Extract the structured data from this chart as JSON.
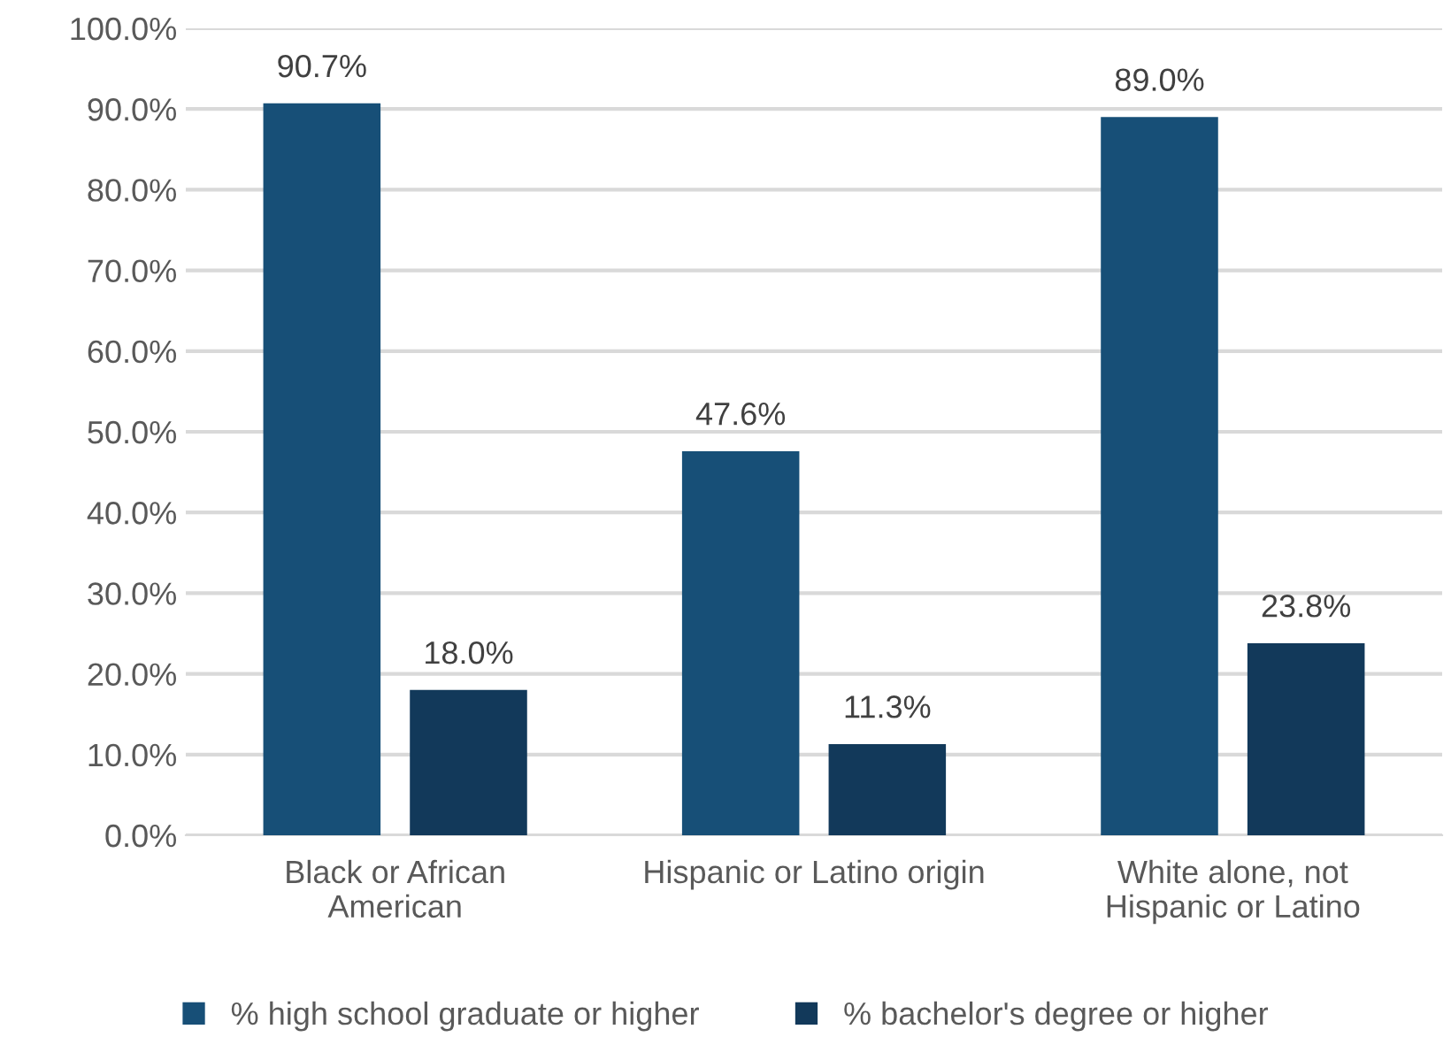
{
  "chart_data": {
    "type": "bar",
    "categories": [
      "Black or African\nAmerican",
      "Hispanic or Latino origin",
      "White alone, not\nHispanic or Latino"
    ],
    "series": [
      {
        "name": "% high school graduate or higher",
        "color": "#174f77",
        "values": [
          90.7,
          47.6,
          89.0
        ],
        "value_labels": [
          "90.7%",
          "47.6%",
          "89.0%"
        ]
      },
      {
        "name": "% bachelor's degree or higher",
        "color": "#12395a",
        "values": [
          18.0,
          11.3,
          23.8
        ],
        "value_labels": [
          "18.0%",
          "11.3%",
          "23.8%"
        ]
      }
    ],
    "ylim": [
      0,
      100
    ],
    "yticks": [
      {
        "value": 0,
        "label": "0.0%"
      },
      {
        "value": 10,
        "label": "10.0%"
      },
      {
        "value": 20,
        "label": "20.0%"
      },
      {
        "value": 30,
        "label": "30.0%"
      },
      {
        "value": 40,
        "label": "40.0%"
      },
      {
        "value": 50,
        "label": "50.0%"
      },
      {
        "value": 60,
        "label": "60.0%"
      },
      {
        "value": 70,
        "label": "70.0%"
      },
      {
        "value": 80,
        "label": "80.0%"
      },
      {
        "value": 90,
        "label": "90.0%"
      },
      {
        "value": 100,
        "label": "100.0%"
      }
    ],
    "grid": "y",
    "legend": "bottom"
  }
}
